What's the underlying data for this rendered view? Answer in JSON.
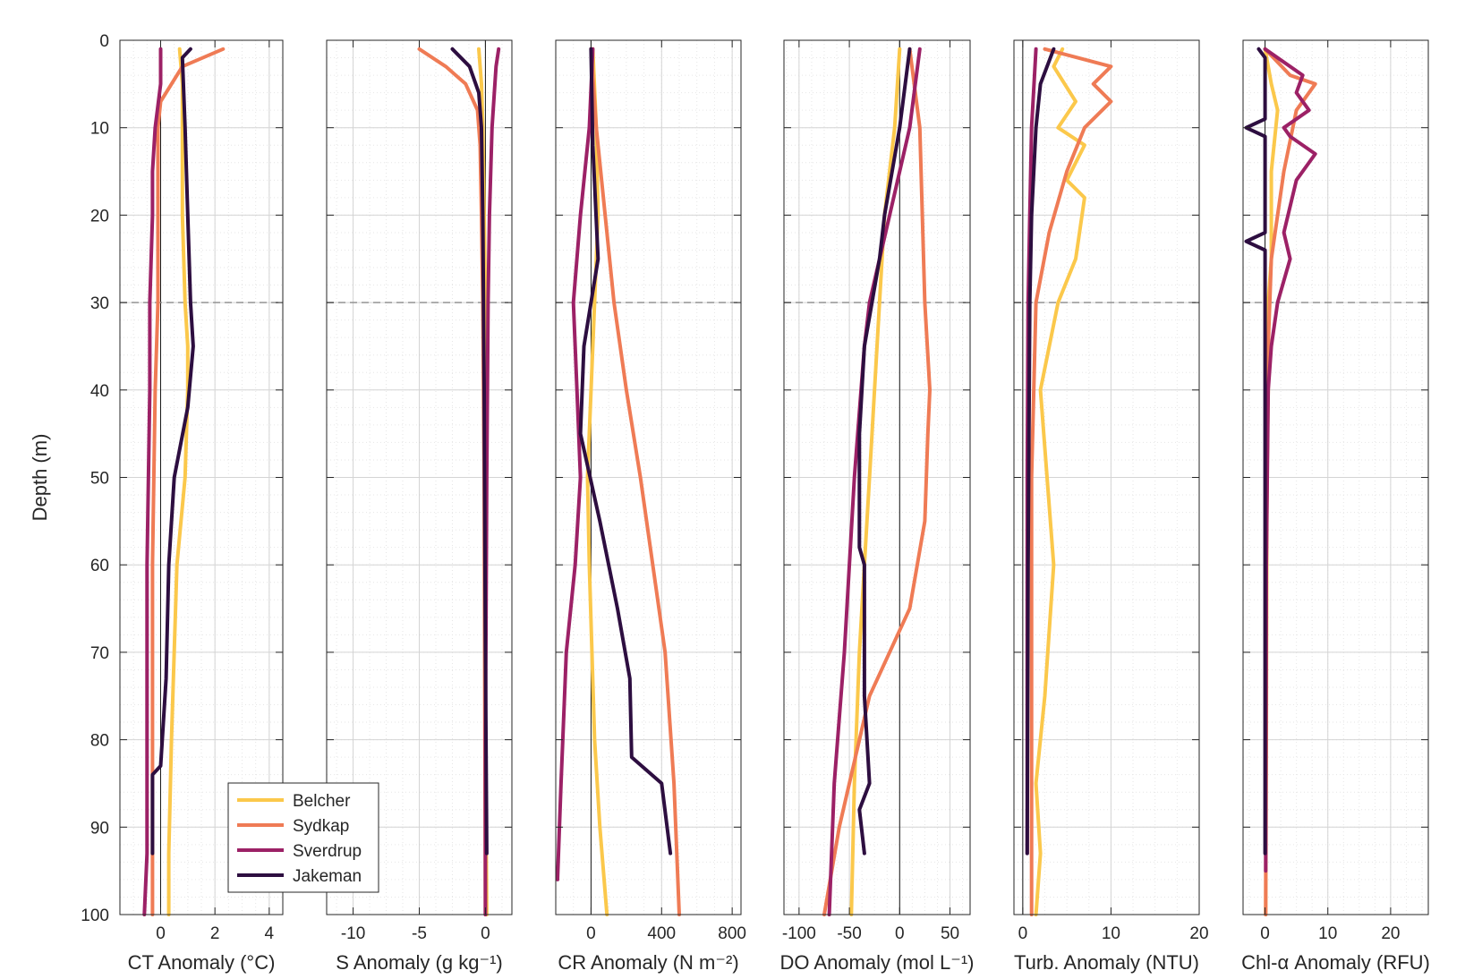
{
  "figure": {
    "ylabel": "Depth (m)",
    "y_ticks": [
      0,
      10,
      20,
      30,
      40,
      50,
      60,
      70,
      80,
      90,
      100
    ],
    "ylim": [
      0,
      100
    ],
    "y_reversed": true,
    "reference_depth": 30
  },
  "legend": {
    "placement": "lower-left of first panel",
    "entries": [
      {
        "name": "Belcher",
        "color": "#fbc84b"
      },
      {
        "name": "Sydkap",
        "color": "#ef7b55"
      },
      {
        "name": "Sverdrup",
        "color": "#9c2166"
      },
      {
        "name": "Jakeman",
        "color": "#2d0e40"
      }
    ]
  },
  "chart_data": [
    {
      "type": "line",
      "xlabel": "CT Anomaly (°C)",
      "xlim": [
        -1.5,
        4.5
      ],
      "x_ticks": [
        0,
        2,
        4
      ],
      "x_tick_labels": [
        "0",
        "2",
        "4"
      ],
      "grid": true,
      "series": [
        {
          "name": "Belcher",
          "color": "#fbc84b",
          "x": [
            0.7,
            0.8,
            0.8,
            0.8,
            0.9,
            1.0,
            1.0,
            0.9,
            0.6,
            0.4,
            0.3,
            0.3
          ],
          "y": [
            1,
            5,
            10,
            20,
            30,
            35,
            40,
            50,
            60,
            80,
            93,
            100
          ]
        },
        {
          "name": "Sydkap",
          "color": "#ef7b55",
          "x": [
            2.3,
            0.8,
            0.0,
            -0.1,
            -0.1,
            -0.1,
            -0.2,
            -0.3,
            -0.3,
            -0.3,
            -0.3
          ],
          "y": [
            1,
            3,
            7,
            10,
            20,
            30,
            40,
            60,
            80,
            93,
            100
          ]
        },
        {
          "name": "Sverdrup",
          "color": "#9c2166",
          "x": [
            0.0,
            0.0,
            -0.2,
            -0.3,
            -0.3,
            -0.4,
            -0.4,
            -0.5,
            -0.5,
            -0.5,
            -0.6
          ],
          "y": [
            1,
            5,
            10,
            15,
            20,
            30,
            40,
            60,
            80,
            93,
            100
          ]
        },
        {
          "name": "Jakeman",
          "color": "#2d0e40",
          "x": [
            1.1,
            0.8,
            0.9,
            1.0,
            1.1,
            1.2,
            1.0,
            0.5,
            0.3,
            0.2,
            0.0,
            -0.3,
            -0.3
          ],
          "y": [
            1,
            2,
            10,
            20,
            30,
            35,
            42,
            50,
            60,
            73,
            83,
            84,
            93
          ]
        }
      ]
    },
    {
      "type": "line",
      "xlabel": "S Anomaly (g kg⁻¹)",
      "xlim": [
        -12,
        2
      ],
      "x_ticks": [
        -10,
        -5,
        0
      ],
      "x_tick_labels": [
        "-10",
        "-5",
        "0"
      ],
      "grid": true,
      "series": [
        {
          "name": "Belcher",
          "color": "#fbc84b",
          "x": [
            -0.5,
            -0.3,
            -0.2,
            -0.1,
            0.0,
            0.0,
            0.0,
            0.1
          ],
          "y": [
            1,
            5,
            10,
            20,
            30,
            50,
            80,
            100
          ]
        },
        {
          "name": "Sydkap",
          "color": "#ef7b55",
          "x": [
            -5.0,
            -3.0,
            -1.5,
            -0.6,
            -0.4,
            -0.3,
            -0.2,
            -0.1,
            0.0
          ],
          "y": [
            1,
            3,
            5,
            8,
            12,
            20,
            30,
            50,
            100
          ]
        },
        {
          "name": "Sverdrup",
          "color": "#9c2166",
          "x": [
            1.0,
            0.8,
            0.5,
            0.3,
            0.2,
            0.1,
            0.0,
            0.0
          ],
          "y": [
            1,
            3,
            10,
            20,
            30,
            50,
            80,
            100
          ]
        },
        {
          "name": "Jakeman",
          "color": "#2d0e40",
          "x": [
            -2.5,
            -1.2,
            -0.5,
            -0.3,
            -0.2,
            -0.1,
            0.0,
            0.1
          ],
          "y": [
            1,
            3,
            6,
            10,
            20,
            40,
            70,
            93
          ]
        }
      ]
    },
    {
      "type": "line",
      "xlabel": "CR Anomaly (N m⁻²)",
      "xlim": [
        -200,
        850
      ],
      "x_ticks": [
        0,
        400,
        800
      ],
      "x_tick_labels": [
        "0",
        "400",
        "800"
      ],
      "grid": true,
      "series": [
        {
          "name": "Belcher",
          "color": "#fbc84b",
          "x": [
            10,
            30,
            40,
            20,
            -20,
            -10,
            20,
            50,
            90
          ],
          "y": [
            1,
            10,
            20,
            30,
            50,
            60,
            80,
            90,
            100
          ]
        },
        {
          "name": "Sydkap",
          "color": "#ef7b55",
          "x": [
            0,
            30,
            80,
            130,
            200,
            280,
            350,
            420,
            470,
            500
          ],
          "y": [
            1,
            10,
            20,
            30,
            40,
            50,
            60,
            70,
            85,
            100
          ]
        },
        {
          "name": "Sverdrup",
          "color": "#9c2166",
          "x": [
            10,
            -10,
            -60,
            -100,
            -80,
            -60,
            -90,
            -140,
            -170,
            -190
          ],
          "y": [
            1,
            10,
            20,
            30,
            40,
            50,
            60,
            70,
            85,
            96
          ]
        },
        {
          "name": "Jakeman",
          "color": "#2d0e40",
          "x": [
            0,
            10,
            40,
            -40,
            -60,
            50,
            150,
            220,
            230,
            400,
            450
          ],
          "y": [
            1,
            12,
            25,
            35,
            45,
            55,
            65,
            73,
            82,
            85,
            93
          ]
        }
      ]
    },
    {
      "type": "line",
      "xlabel": "DO Anomaly (mol L⁻¹)",
      "xlim": [
        -115,
        70
      ],
      "x_ticks": [
        -100,
        -50,
        0,
        50
      ],
      "x_tick_labels": [
        "-100",
        "-50",
        "0",
        "50"
      ],
      "grid": true,
      "series": [
        {
          "name": "Belcher",
          "color": "#fbc84b",
          "x": [
            0,
            -5,
            -15,
            -20,
            -25,
            -30,
            -35,
            -40,
            -45,
            -48
          ],
          "y": [
            1,
            10,
            20,
            30,
            40,
            50,
            60,
            70,
            85,
            100
          ]
        },
        {
          "name": "Sydkap",
          "color": "#ef7b55",
          "x": [
            10,
            20,
            25,
            30,
            28,
            25,
            10,
            -30,
            -60,
            -75
          ],
          "y": [
            1,
            10,
            30,
            40,
            45,
            55,
            65,
            75,
            90,
            100
          ]
        },
        {
          "name": "Sverdrup",
          "color": "#9c2166",
          "x": [
            20,
            10,
            -10,
            -30,
            -35,
            -45,
            -55,
            -65,
            -70
          ],
          "y": [
            1,
            10,
            20,
            30,
            35,
            50,
            70,
            85,
            100
          ]
        },
        {
          "name": "Jakeman",
          "color": "#2d0e40",
          "x": [
            10,
            0,
            -15,
            -20,
            -35,
            -40,
            -40,
            -35,
            -35,
            -30,
            -40,
            -35
          ],
          "y": [
            1,
            10,
            20,
            25,
            35,
            45,
            58,
            60,
            75,
            85,
            88,
            93
          ]
        }
      ]
    },
    {
      "type": "line",
      "xlabel": "Turb. Anomaly (NTU)",
      "xlim": [
        -1,
        20
      ],
      "x_ticks": [
        0,
        10,
        20
      ],
      "x_tick_labels": [
        "0",
        "10",
        "20"
      ],
      "grid": true,
      "series": [
        {
          "name": "Belcher",
          "color": "#fbc84b",
          "x": [
            4.5,
            3.5,
            6.0,
            4.0,
            7.0,
            5.0,
            7.0,
            6.0,
            4.0,
            2.0,
            3.5,
            2.5,
            1.5,
            2.0,
            1.5
          ],
          "y": [
            1,
            3,
            7,
            10,
            12,
            16,
            18,
            25,
            30,
            40,
            60,
            75,
            85,
            93,
            100
          ]
        },
        {
          "name": "Sydkap",
          "color": "#ef7b55",
          "x": [
            2.5,
            10.0,
            8.0,
            10.0,
            7.0,
            5.0,
            3.0,
            1.5,
            1.0,
            1.0,
            1.0
          ],
          "y": [
            1,
            3,
            5,
            7,
            10,
            15,
            22,
            30,
            50,
            80,
            100
          ]
        },
        {
          "name": "Sverdrup",
          "color": "#9c2166",
          "x": [
            1.5,
            1.0,
            0.8,
            0.6,
            0.5,
            0.5,
            0.5
          ],
          "y": [
            1,
            10,
            20,
            30,
            50,
            80,
            93
          ]
        },
        {
          "name": "Jakeman",
          "color": "#2d0e40",
          "x": [
            3.5,
            2.0,
            1.5,
            1.0,
            0.8,
            0.6,
            0.5
          ],
          "y": [
            1,
            5,
            10,
            20,
            30,
            60,
            93
          ]
        }
      ]
    },
    {
      "type": "line",
      "xlabel": "Chl-α Anomaly (RFU)",
      "xlim": [
        -3.5,
        26
      ],
      "x_ticks": [
        0,
        10,
        20
      ],
      "x_tick_labels": [
        "0",
        "10",
        "20"
      ],
      "grid": true,
      "series": [
        {
          "name": "Belcher",
          "color": "#fbc84b",
          "x": [
            0,
            1,
            2,
            1,
            1,
            0.5,
            0.5,
            0.3,
            0.2,
            0.1
          ],
          "y": [
            1,
            5,
            8,
            15,
            25,
            30,
            40,
            50,
            80,
            100
          ]
        },
        {
          "name": "Sydkap",
          "color": "#ef7b55",
          "x": [
            0,
            4,
            8,
            5,
            3,
            1,
            0.5,
            0.2,
            0.1
          ],
          "y": [
            1,
            4,
            5,
            8,
            15,
            25,
            35,
            60,
            100
          ]
        },
        {
          "name": "Sverdrup",
          "color": "#9c2166",
          "x": [
            0,
            6,
            5,
            7,
            3,
            4,
            8,
            5,
            4,
            3,
            4,
            2,
            1,
            0.5,
            0.2,
            0.1
          ],
          "y": [
            1,
            4,
            6,
            8,
            10,
            11,
            13,
            16,
            19,
            22,
            25,
            30,
            35,
            40,
            60,
            95
          ]
        },
        {
          "name": "Jakeman",
          "color": "#2d0e40",
          "x": [
            -1,
            0,
            0,
            -3,
            0,
            0,
            -3,
            0,
            0,
            0
          ],
          "y": [
            1,
            2,
            9,
            10,
            11,
            22,
            23,
            24,
            50,
            93
          ]
        }
      ]
    }
  ]
}
